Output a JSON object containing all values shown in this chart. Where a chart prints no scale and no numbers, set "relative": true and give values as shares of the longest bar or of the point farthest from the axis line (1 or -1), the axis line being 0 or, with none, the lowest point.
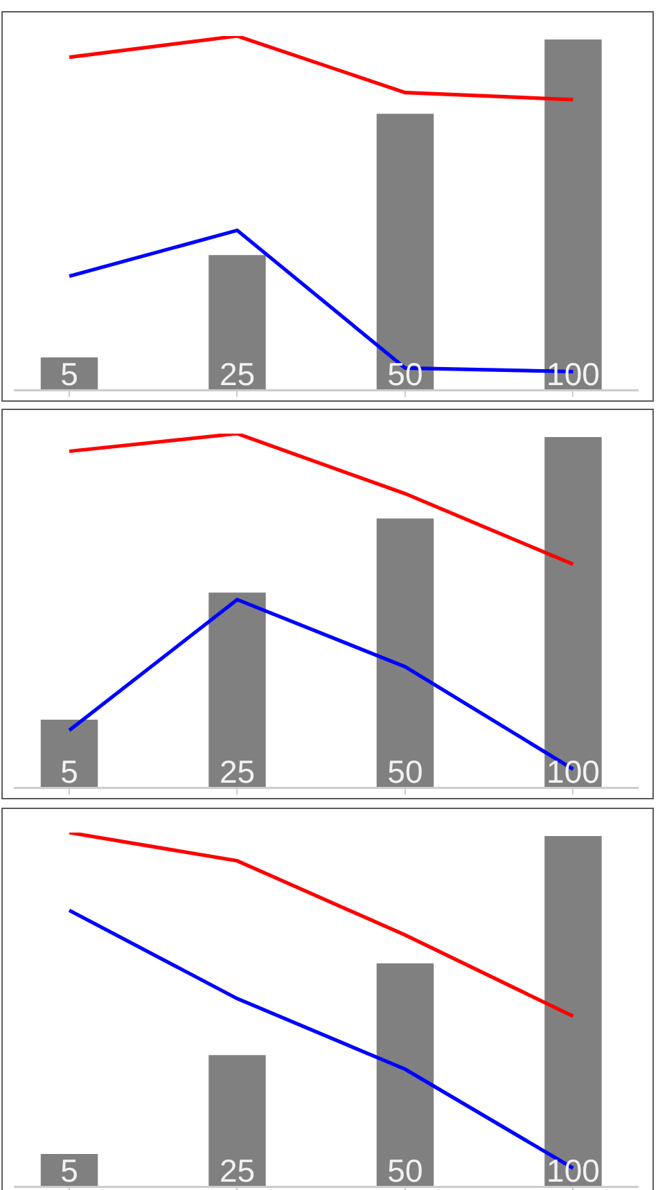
{
  "chart_data": [
    {
      "type": "bar",
      "categories": [
        "5",
        "25",
        "50",
        "100"
      ],
      "relative": true,
      "series": [
        {
          "color": "#808080",
          "values": [
            0.09,
            0.38,
            0.78,
            0.99
          ]
        },
        {
          "type": "line",
          "color": "#ff0000",
          "values": [
            0.94,
            1,
            0.84,
            0.82
          ]
        },
        {
          "type": "line",
          "color": "#0000ff",
          "values": [
            0.32,
            0.45,
            0.06,
            0.05
          ]
        }
      ]
    },
    {
      "type": "bar",
      "categories": [
        "5",
        "25",
        "50",
        "100"
      ],
      "relative": true,
      "series": [
        {
          "color": "#808080",
          "values": [
            0.19,
            0.55,
            0.76,
            0.99
          ]
        },
        {
          "type": "line",
          "color": "#ff0000",
          "values": [
            0.95,
            1,
            0.83,
            0.63
          ]
        },
        {
          "type": "line",
          "color": "#0000ff",
          "values": [
            0.16,
            0.53,
            0.34,
            0.05
          ]
        }
      ]
    },
    {
      "type": "bar",
      "categories": [
        "5",
        "25",
        "50",
        "100"
      ],
      "relative": true,
      "series": [
        {
          "color": "#808080",
          "values": [
            0.09,
            0.37,
            0.63,
            0.99
          ]
        },
        {
          "type": "line",
          "color": "#ff0000",
          "values": [
            1,
            0.92,
            0.71,
            0.48
          ]
        },
        {
          "type": "line",
          "color": "#0000ff",
          "values": [
            0.78,
            0.53,
            0.33,
            0.05
          ]
        }
      ]
    }
  ]
}
